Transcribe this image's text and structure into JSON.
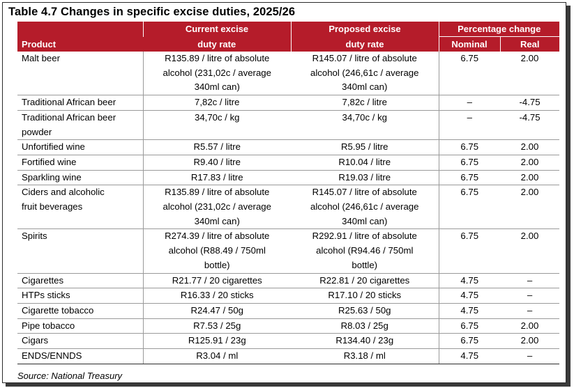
{
  "title": "Table 4.7  Changes in specific excise duties, 2025/26",
  "headers": {
    "product": "Product",
    "current_line1": "Current excise",
    "current_line2": "duty rate",
    "proposed_line1": "Proposed excise",
    "proposed_line2": "duty rate",
    "percentage_change": "Percentage  change",
    "nominal": "Nominal",
    "real": "Real"
  },
  "rows": [
    {
      "product": [
        "Malt beer"
      ],
      "current": [
        "R135.89 / litre of absolute",
        "alcohol (231,02c / average",
        "340ml can)"
      ],
      "proposed": [
        "R145.07 / litre of absolute",
        "alcohol (246,61c / average",
        "340ml can)"
      ],
      "nominal": "6.75",
      "real": "2.00"
    },
    {
      "product": [
        "Traditional African beer"
      ],
      "current": [
        "7,82c / litre"
      ],
      "proposed": [
        "7,82c / litre"
      ],
      "nominal": "–",
      "real": "-4.75"
    },
    {
      "product": [
        "Traditional African beer",
        "powder"
      ],
      "current": [
        "34,70c / kg"
      ],
      "proposed": [
        "34,70c / kg"
      ],
      "nominal": "–",
      "real": "-4.75"
    },
    {
      "product": [
        "Unfortified wine"
      ],
      "current": [
        "R5.57 / litre"
      ],
      "proposed": [
        "R5.95 / litre"
      ],
      "nominal": "6.75",
      "real": "2.00"
    },
    {
      "product": [
        "Fortified wine"
      ],
      "current": [
        "R9.40 / litre"
      ],
      "proposed": [
        "R10.04 / litre"
      ],
      "nominal": "6.75",
      "real": "2.00"
    },
    {
      "product": [
        "Sparkling wine"
      ],
      "current": [
        "R17.83 / litre"
      ],
      "proposed": [
        "R19.03 / litre"
      ],
      "nominal": "6.75",
      "real": "2.00"
    },
    {
      "product": [
        "Ciders and alcoholic",
        "fruit beverages"
      ],
      "current": [
        "R135.89 / litre of absolute",
        "alcohol (231,02c / average",
        "340ml can)"
      ],
      "proposed": [
        "R145.07 / litre of absolute",
        "alcohol (246,61c / average",
        "340ml can)"
      ],
      "nominal": "6.75",
      "real": "2.00"
    },
    {
      "product": [
        "Spirits"
      ],
      "current": [
        "R274.39 / litre of absolute",
        "alcohol (R88.49 / 750ml",
        "bottle)"
      ],
      "proposed": [
        "R292.91 / litre of absolute",
        "alcohol (R94.46 / 750ml",
        "bottle)"
      ],
      "nominal": "6.75",
      "real": "2.00"
    },
    {
      "product": [
        "Cigarettes"
      ],
      "current": [
        "R21.77 / 20 cigarettes"
      ],
      "proposed": [
        "R22.81 / 20 cigarettes"
      ],
      "nominal": "4.75",
      "real": "–"
    },
    {
      "product": [
        "HTPs sticks"
      ],
      "current": [
        "R16.33 / 20 sticks"
      ],
      "proposed": [
        "R17.10 / 20 sticks"
      ],
      "nominal": "4.75",
      "real": "–"
    },
    {
      "product": [
        "Cigarette tobacco"
      ],
      "current": [
        "R24.47 / 50g"
      ],
      "proposed": [
        "R25.63 / 50g"
      ],
      "nominal": "4.75",
      "real": "–"
    },
    {
      "product": [
        "Pipe tobacco"
      ],
      "current": [
        "R7.53 / 25g"
      ],
      "proposed": [
        "R8.03 / 25g"
      ],
      "nominal": "6.75",
      "real": "2.00"
    },
    {
      "product": [
        "Cigars"
      ],
      "current": [
        "R125.91 / 23g"
      ],
      "proposed": [
        "R134.40 / 23g"
      ],
      "nominal": "6.75",
      "real": "2.00"
    },
    {
      "product": [
        "ENDS/ENNDS"
      ],
      "current": [
        "R3.04 / ml"
      ],
      "proposed": [
        "R3.18 / ml"
      ],
      "nominal": "4.75",
      "real": "–"
    }
  ],
  "source": "Source: National Treasury",
  "colors": {
    "header_bg": "#b51c2a",
    "header_text": "#ffffff"
  }
}
